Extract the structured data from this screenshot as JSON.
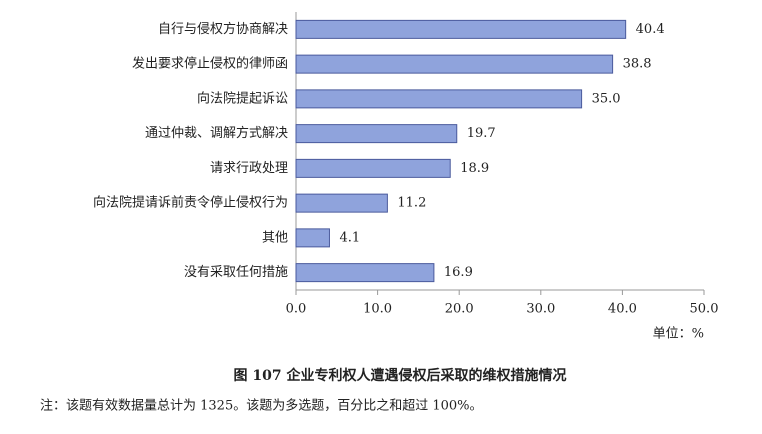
{
  "chart_data": {
    "type": "bar",
    "orientation": "horizontal",
    "categories": [
      "自行与侵权方协商解决",
      "发出要求停止侵权的律师函",
      "向法院提起诉讼",
      "通过仲裁、调解方式解决",
      "请求行政处理",
      "向法院提请诉前责令停止侵权行为",
      "其他",
      "没有采取任何措施"
    ],
    "values": [
      40.4,
      38.8,
      35.0,
      19.7,
      18.9,
      11.2,
      4.1,
      16.9
    ],
    "value_labels": [
      "40.4",
      "38.8",
      "35.0",
      "19.7",
      "18.9",
      "11.2",
      "4.1",
      "16.9"
    ],
    "color": "#8fa3dc",
    "xlim": [
      0,
      50
    ],
    "xticks": [
      {
        "value": 0,
        "label": "0.0"
      },
      {
        "value": 10,
        "label": "10.0"
      },
      {
        "value": 20,
        "label": "20.0"
      },
      {
        "value": 30,
        "label": "30.0"
      },
      {
        "value": 40,
        "label": "40.0"
      },
      {
        "value": 50,
        "label": "50.0"
      }
    ],
    "unit_label": "单位：%",
    "title": "图 107  企业专利权人遭遇侵权后采取的维权措施情况",
    "note": "注：该题有效数据量总计为 1325。该题为多选题，百分比之和超过 100%。"
  }
}
